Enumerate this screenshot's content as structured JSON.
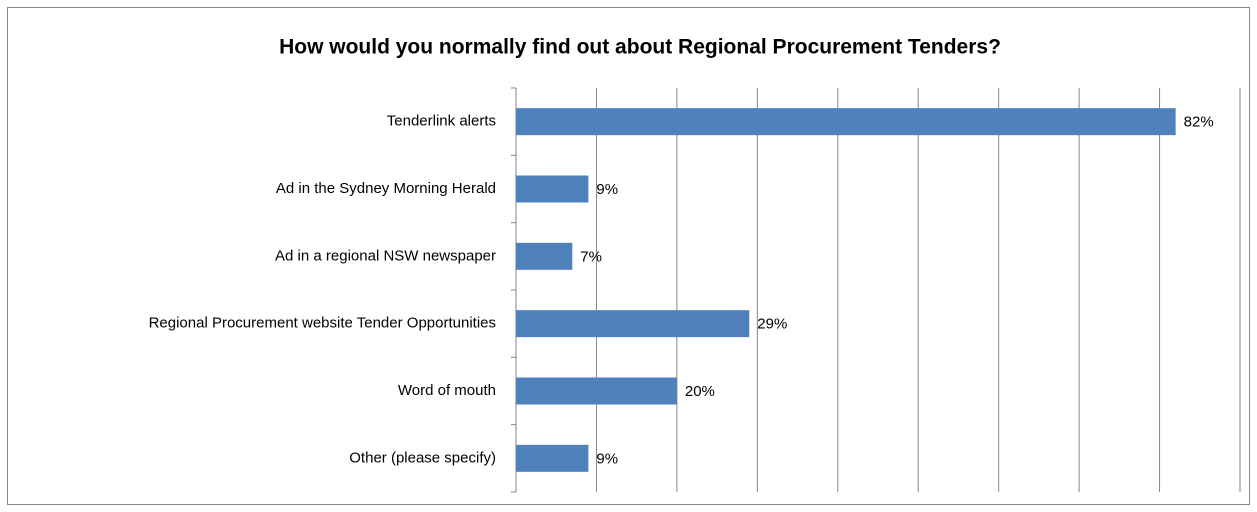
{
  "chart_data": {
    "type": "bar",
    "orientation": "horizontal",
    "title": "How would you normally find out about Regional Procurement Tenders?",
    "categories": [
      "Tenderlink alerts",
      "Ad in the Sydney Morning Herald",
      "Ad in a regional NSW newspaper",
      "Regional Procurement website Tender Opportunities",
      "Word of mouth",
      "Other (please specify)"
    ],
    "values": [
      82,
      9,
      7,
      29,
      20,
      9
    ],
    "value_labels": [
      "82%",
      "9%",
      "7%",
      "29%",
      "20%",
      "9%"
    ],
    "color": "#4f81bd",
    "xlim": [
      0,
      90
    ],
    "xticks": [
      0,
      10,
      20,
      30,
      40,
      50,
      60,
      70,
      80,
      90
    ],
    "grid": true
  }
}
